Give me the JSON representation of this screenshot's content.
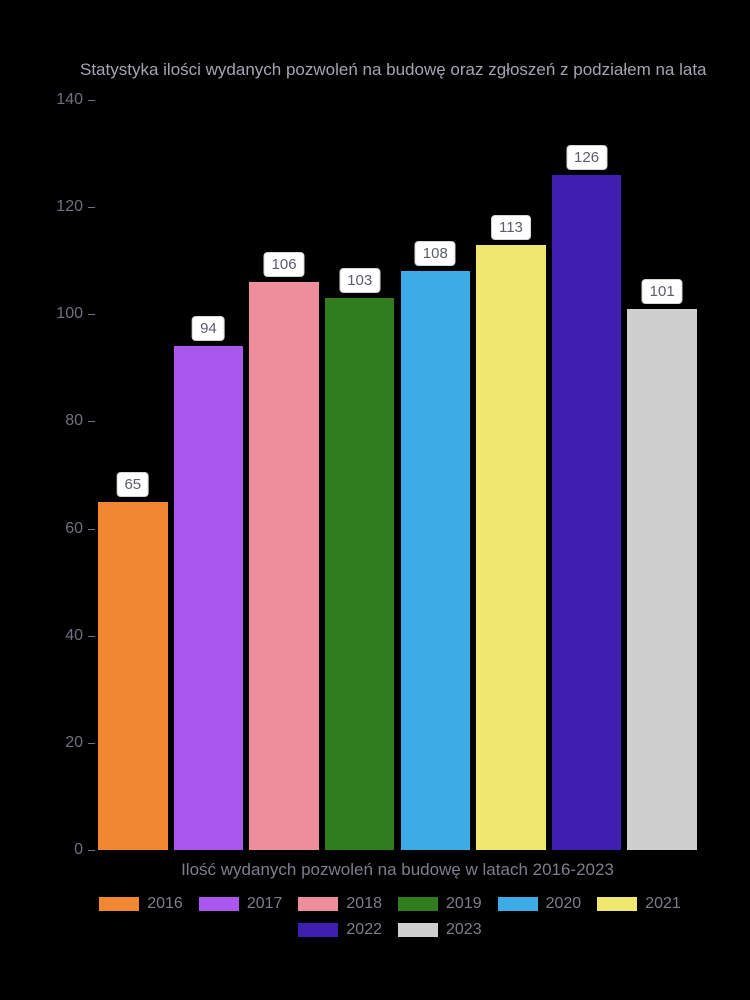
{
  "chart": {
    "type": "bar",
    "title": "Statystyka ilości wydanych pozwoleń na budowę oraz zgłoszeń z podziałem na lata",
    "x_label": "Ilość wydanych pozwoleń na budowę w latach 2016-2023",
    "background_color": "#000000",
    "text_color_title": "#a3a5b3",
    "text_color_axis": "#6f717f",
    "text_color_xlabel": "#7c7e8c",
    "text_color_legend": "#7c7e8c",
    "bar_label_bg": "#ffffff",
    "bar_label_text": "#5b5d6b",
    "bar_label_border": "#d5d5d9",
    "y_axis": {
      "min": 0,
      "max": 140,
      "tick_step": 20,
      "ticks": [
        "0",
        "20",
        "40",
        "60",
        "80",
        "100",
        "120",
        "140"
      ]
    },
    "series": [
      {
        "year": "2016",
        "value": 65,
        "color": "#f18733"
      },
      {
        "year": "2017",
        "value": 94,
        "color": "#a957ed"
      },
      {
        "year": "2018",
        "value": 106,
        "color": "#ec8e9b"
      },
      {
        "year": "2019",
        "value": 103,
        "color": "#2f7d1e"
      },
      {
        "year": "2020",
        "value": 108,
        "color": "#3cabe6"
      },
      {
        "year": "2021",
        "value": 113,
        "color": "#efe770"
      },
      {
        "year": "2022",
        "value": 126,
        "color": "#3f1fb0"
      },
      {
        "year": "2023",
        "value": 101,
        "color": "#cfcfcf"
      }
    ],
    "bar_gap_ratio": 0.08,
    "title_fontsize": 17,
    "axis_fontsize": 16,
    "legend_fontsize": 16,
    "barlabel_fontsize": 15
  }
}
